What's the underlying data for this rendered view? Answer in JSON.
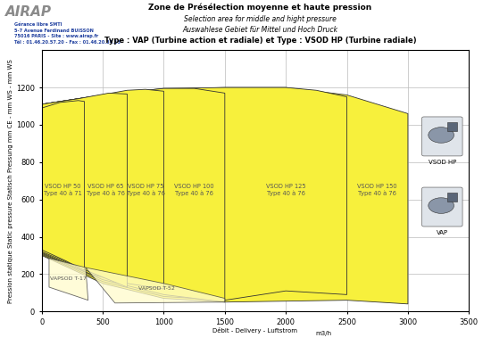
{
  "chart_data": {
    "type": "area",
    "header": {
      "logo": "AIRAP",
      "lines": [
        "Gérance libre SMTI",
        "5-7 Avenue Ferdinand BUISSON",
        "75016 PARIS - Site : www.airap.fr",
        "Tél : 01.46.20.57.20 - Fax : 01.46.20.34.15"
      ]
    },
    "title": "Zone de Présélection moyenne et haute pression",
    "subtitles": [
      "Selection area for middle and hight pressure",
      "Auswahlese Gebiet für Mittel und Hoch Druck",
      "Type : VAP (Turbine action et radiale) et Type : VSOD HP (Turbine radiale)"
    ],
    "x_label": "Débit - Delivery - Luftstrom",
    "x_unit": "m3/h",
    "y_label": "Pression statique Static pressure Statisch Pressung mm CE - mm WS - mm WS",
    "xlim": [
      0,
      3500
    ],
    "ylim": [
      0,
      1400
    ],
    "xticks": [
      0,
      500,
      1000,
      1500,
      2000,
      2500,
      3000,
      3500
    ],
    "yticks": [
      0,
      200,
      400,
      600,
      800,
      1000,
      1200
    ],
    "grid": true,
    "icons": [
      "VSOD HP",
      "VAP"
    ],
    "series": [
      {
        "name": "VSOD HP 150",
        "range_text": "Type 40 à 76",
        "color": "#f7f03c",
        "x": [
          0,
          500,
          1000,
          1500,
          2000,
          2500,
          3000,
          3000,
          2500,
          2000,
          1500,
          1000,
          500,
          0
        ],
        "values": [
          1110,
          1160,
          1190,
          1200,
          1200,
          1160,
          1060,
          40,
          60,
          55,
          50,
          70,
          150,
          300
        ]
      },
      {
        "name": "VSOD HP 125",
        "range_text": "Type 40 à 76",
        "color": "#f7f03c",
        "x": [
          0,
          500,
          1000,
          1500,
          2000,
          2250,
          2500,
          2500,
          2000,
          1500,
          1000,
          500,
          0
        ],
        "values": [
          1110,
          1160,
          1195,
          1200,
          1200,
          1185,
          1150,
          90,
          110,
          60,
          80,
          160,
          305
        ]
      },
      {
        "name": "VSOD HP 100",
        "range_text": "Type 40 à 76",
        "color": "#f7f03c",
        "x": [
          0,
          500,
          1000,
          1250,
          1500,
          1500,
          1000,
          500,
          0
        ],
        "values": [
          1110,
          1160,
          1195,
          1195,
          1170,
          50,
          90,
          170,
          310
        ]
      },
      {
        "name": "VSOD HP 75",
        "range_text": "Type 40 à 76",
        "color": "#f7f03c",
        "x": [
          0,
          400,
          700,
          850,
          1000,
          1000,
          700,
          400,
          0
        ],
        "values": [
          1110,
          1150,
          1185,
          1190,
          1180,
          120,
          150,
          200,
          315
        ]
      },
      {
        "name": "VSOD HP 65",
        "range_text": "Type 40 à 76",
        "color": "#f7f03c",
        "x": [
          0,
          300,
          550,
          700,
          700,
          400,
          0
        ],
        "values": [
          1110,
          1140,
          1170,
          1165,
          130,
          210,
          320
        ]
      },
      {
        "name": "VSOD HP 50",
        "range_text": "Type 40 à 71",
        "color": "#f7f03c",
        "x": [
          0,
          150,
          300,
          350,
          350,
          200,
          0
        ],
        "values": [
          1090,
          1120,
          1130,
          1125,
          220,
          270,
          330
        ]
      },
      {
        "name": "VAPSOD T-17",
        "color": "#fffbcc",
        "x": [
          60,
          360,
          380,
          60
        ],
        "values": [
          285,
          235,
          60,
          130
        ]
      },
      {
        "name": "VAPSOD T-52",
        "color": "#fffbcc",
        "x": [
          360,
          700,
          1000,
          1500,
          1500,
          600
        ],
        "values": [
          235,
          190,
          150,
          70,
          50,
          45
        ]
      }
    ]
  }
}
